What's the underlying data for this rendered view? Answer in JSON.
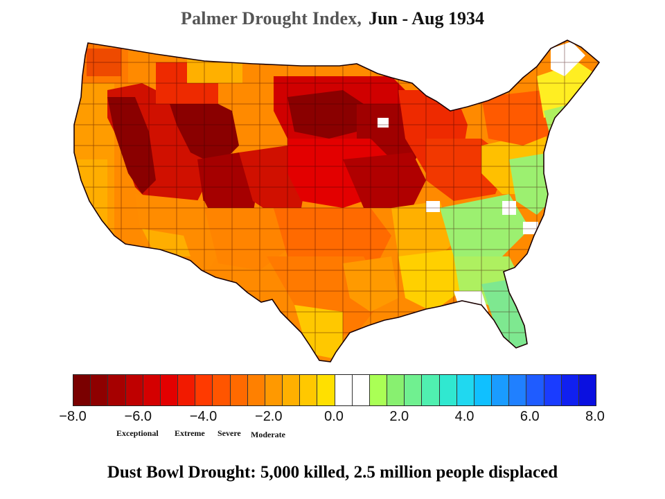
{
  "title": {
    "label": "Palmer Drought Index,",
    "period": "Jun - Aug 1934"
  },
  "legend": {
    "ticks": [
      "−8.0",
      "−6.0",
      "−4.0",
      "−2.0",
      "0.0",
      "2.0",
      "4.0",
      "6.0",
      "8.0"
    ],
    "categories": [
      "Exceptional",
      "Extreme",
      "Severe",
      "Moderate"
    ],
    "colors": [
      "#7a0000",
      "#8e0000",
      "#a60000",
      "#bf0000",
      "#d40000",
      "#e30000",
      "#f21a00",
      "#ff3a00",
      "#ff5500",
      "#ff6a00",
      "#ff8000",
      "#ff9900",
      "#ffb000",
      "#ffc800",
      "#ffe000",
      "#ffffff",
      "#ffffff",
      "#aaff55",
      "#88f070",
      "#70f090",
      "#50f0b0",
      "#30e8d0",
      "#20d8f0",
      "#10c0ff",
      "#1a9cff",
      "#2080ff",
      "#1f5cff",
      "#1a3cff",
      "#1020f0",
      "#0a10e0"
    ]
  },
  "map_colors": {
    "exceptional": "#8a0000",
    "extreme": "#d00000",
    "severe_high": "#ee2a00",
    "severe": "#ff5a00",
    "moderate_high": "#ff7a00",
    "moderate": "#ff9c00",
    "mild": "#ffc200",
    "near_normal": "#ffee22",
    "wet_mild": "#9cf070",
    "wet": "#7ee890",
    "normal": "#ffffff"
  },
  "caption": "Dust Bowl Drought: 5,000 killed, 2.5 million people displaced"
}
